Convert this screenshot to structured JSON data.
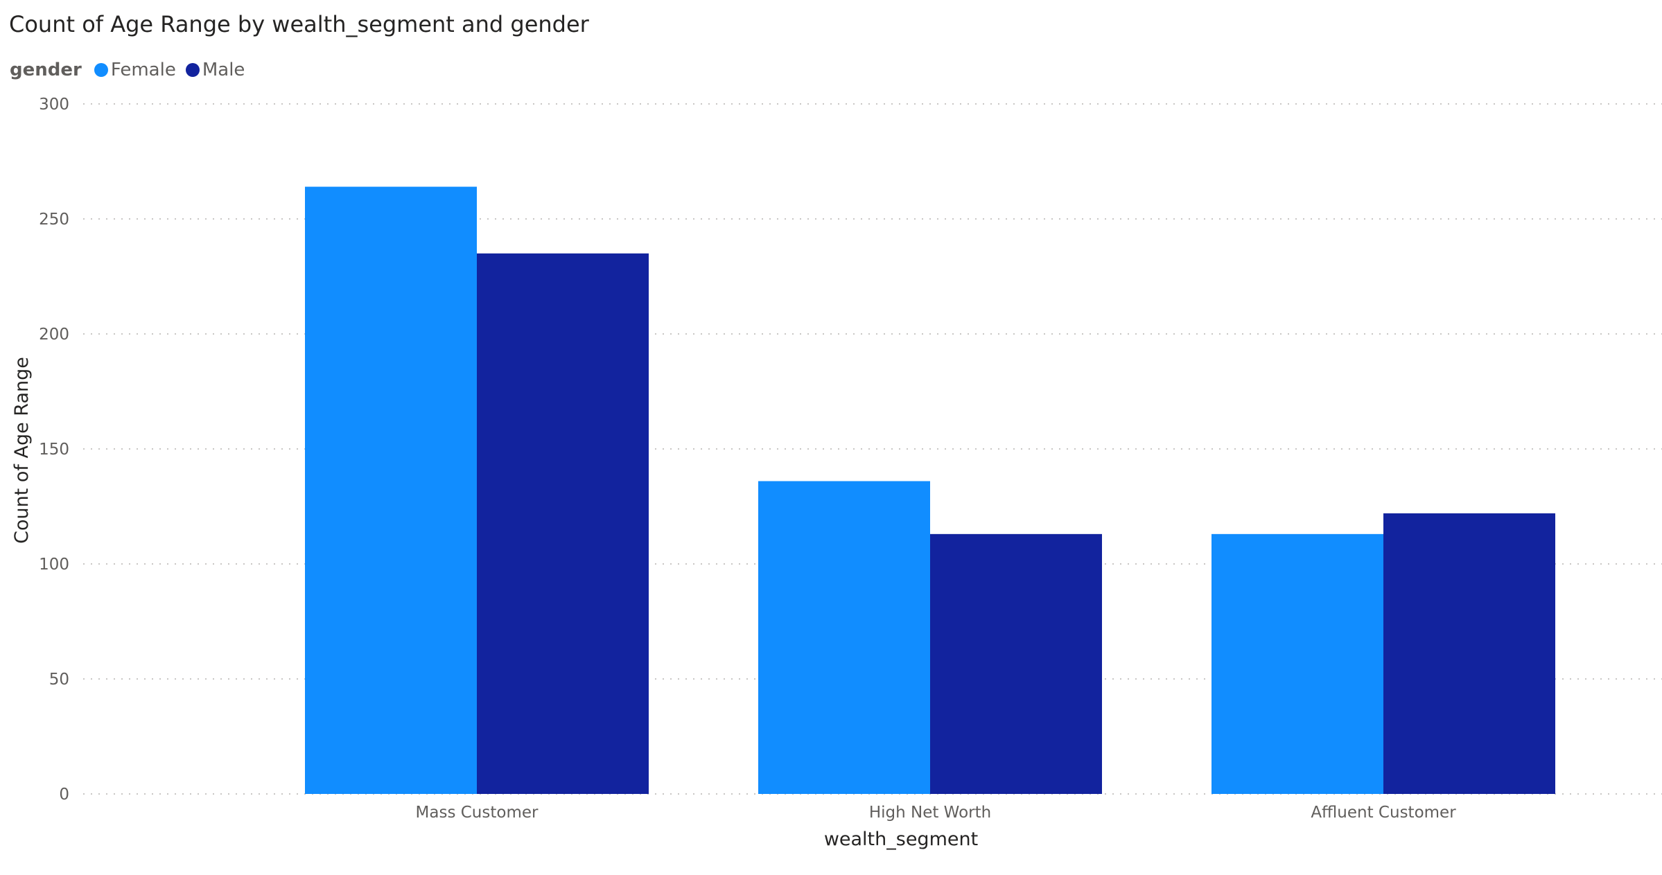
{
  "chart_data": {
    "type": "bar",
    "title": "Count of Age Range by wealth_segment and gender",
    "legend_title": "gender",
    "legend_position": "top-left",
    "categories": [
      "Mass Customer",
      "High Net Worth",
      "Affluent Customer"
    ],
    "series": [
      {
        "name": "Female",
        "color": "#118dff",
        "values": [
          264,
          136,
          113
        ]
      },
      {
        "name": "Male",
        "color": "#12239e",
        "values": [
          235,
          113,
          122
        ]
      }
    ],
    "xlabel": "wealth_segment",
    "ylabel": "Count of Age Range",
    "ylim": [
      0,
      300
    ],
    "yticks": [
      "0",
      "50",
      "100",
      "150",
      "200",
      "250",
      "300"
    ],
    "grid": true
  }
}
